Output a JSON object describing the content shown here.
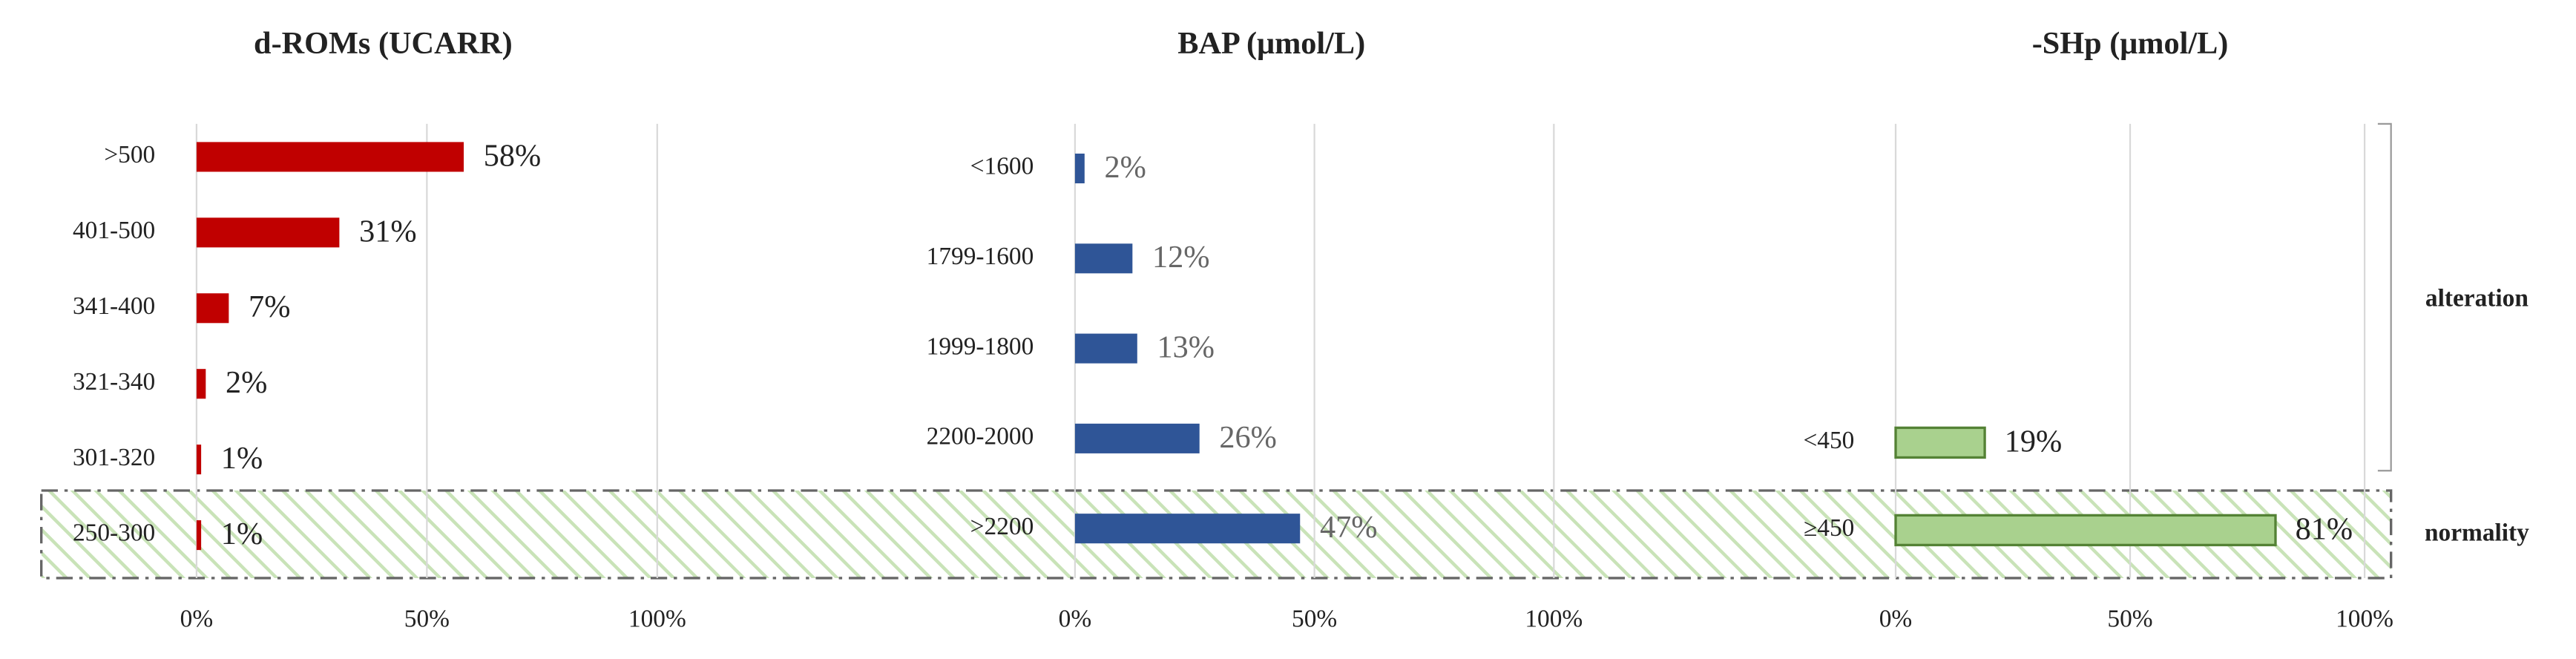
{
  "chart_data": [
    {
      "type": "bar",
      "orientation": "horizontal",
      "title": "d-ROMs (UCARR)",
      "categories": [
        ">500",
        "401-500",
        "341-400",
        "321-340",
        "301-320",
        "250-300"
      ],
      "values": [
        58,
        31,
        7,
        2,
        1,
        1
      ],
      "value_labels": [
        "58%",
        "31%",
        "7%",
        "2%",
        "1%",
        "1%"
      ],
      "color": "#c00000",
      "xlim": [
        0,
        100
      ],
      "xticks": [
        {
          "value": 0,
          "label": "0%"
        },
        {
          "value": 50,
          "label": "50%"
        },
        {
          "value": 100,
          "label": "100%"
        }
      ],
      "grid": true
    },
    {
      "type": "bar",
      "orientation": "horizontal",
      "title": "BAP (μmol/L)",
      "categories": [
        "<1600",
        "1799-1600",
        "1999-1800",
        "2200-2000",
        ">2200"
      ],
      "values": [
        2,
        12,
        13,
        26,
        47
      ],
      "value_labels": [
        "2%",
        "12%",
        "13%",
        "26%",
        "47%"
      ],
      "color": "#2f5597",
      "xlim": [
        0,
        100
      ],
      "xticks": [
        {
          "value": 0,
          "label": "0%"
        },
        {
          "value": 50,
          "label": "50%"
        },
        {
          "value": 100,
          "label": "100%"
        }
      ],
      "grid": true
    },
    {
      "type": "bar",
      "orientation": "horizontal",
      "title": "-SHp (μmol/L)",
      "categories": [
        "<450",
        "≥450"
      ],
      "values": [
        19,
        81
      ],
      "value_labels": [
        "19%",
        "81%"
      ],
      "color": "#a9d18e",
      "xlim": [
        0,
        100
      ],
      "xticks": [
        {
          "value": 0,
          "label": "0%"
        },
        {
          "value": 50,
          "label": "50%"
        },
        {
          "value": 100,
          "label": "100%"
        }
      ],
      "grid": true
    }
  ],
  "annotations": [
    "alteration",
    "normality"
  ]
}
